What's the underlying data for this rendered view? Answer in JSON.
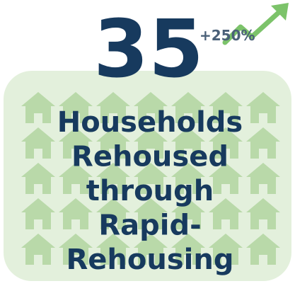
{
  "headline": {
    "number": "35",
    "change": "+250%"
  },
  "caption": {
    "lines": [
      "Households",
      "Rehoused",
      "through",
      "Rapid-",
      "Rehousing"
    ]
  }
}
